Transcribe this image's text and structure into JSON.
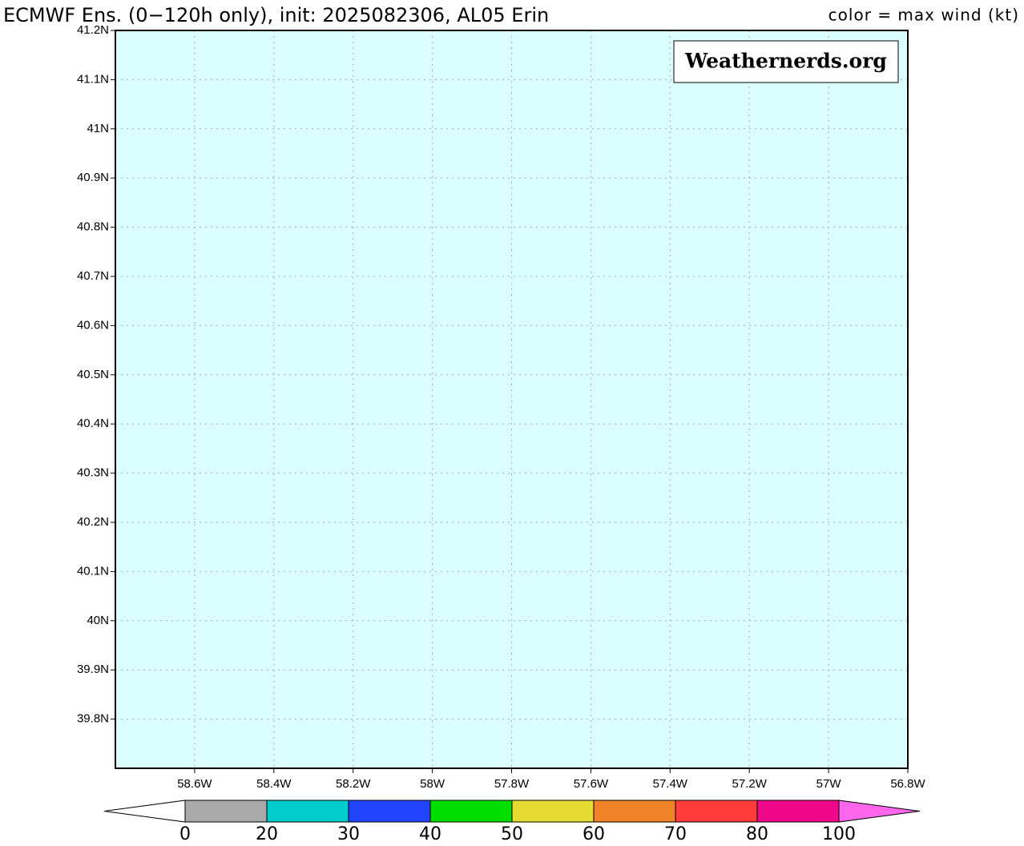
{
  "title": "ECMWF Ens. (0−120h only), init: 2025082306, AL05 Erin",
  "legend_title": "color = max wind (kt)",
  "watermark": "Weathernerds.org",
  "map": {
    "background": "#dbffff",
    "xlim": [
      -58.8,
      -56.8
    ],
    "ylim": [
      39.7,
      41.2
    ],
    "grid": true,
    "xticks": [
      {
        "value": -58.6,
        "label": "58.6W"
      },
      {
        "value": -58.4,
        "label": "58.4W"
      },
      {
        "value": -58.2,
        "label": "58.2W"
      },
      {
        "value": -58.0,
        "label": "58W"
      },
      {
        "value": -57.8,
        "label": "57.8W"
      },
      {
        "value": -57.6,
        "label": "57.6W"
      },
      {
        "value": -57.4,
        "label": "57.4W"
      },
      {
        "value": -57.2,
        "label": "57.2W"
      },
      {
        "value": -57.0,
        "label": "57W"
      },
      {
        "value": -56.8,
        "label": "56.8W"
      }
    ],
    "yticks": [
      {
        "value": 39.8,
        "label": "39.8N"
      },
      {
        "value": 39.9,
        "label": "39.9N"
      },
      {
        "value": 40.0,
        "label": "40N"
      },
      {
        "value": 40.1,
        "label": "40.1N"
      },
      {
        "value": 40.2,
        "label": "40.2N"
      },
      {
        "value": 40.3,
        "label": "40.3N"
      },
      {
        "value": 40.4,
        "label": "40.4N"
      },
      {
        "value": 40.5,
        "label": "40.5N"
      },
      {
        "value": 40.6,
        "label": "40.6N"
      },
      {
        "value": 40.7,
        "label": "40.7N"
      },
      {
        "value": 40.8,
        "label": "40.8N"
      },
      {
        "value": 40.9,
        "label": "40.9N"
      },
      {
        "value": 41.0,
        "label": "41N"
      },
      {
        "value": 41.1,
        "label": "41.1N"
      },
      {
        "value": 41.2,
        "label": "41.2N"
      }
    ]
  },
  "colorbar": {
    "ticks": [
      0,
      20,
      30,
      40,
      50,
      60,
      70,
      80,
      100
    ],
    "colors": [
      "#aaaaaa",
      "#00cccc",
      "#2244ff",
      "#00dd00",
      "#e6dc32",
      "#f08228",
      "#ff3c3c",
      "#f0088c"
    ],
    "under_color": "#ffffff",
    "over_color": "#ff66ee"
  }
}
